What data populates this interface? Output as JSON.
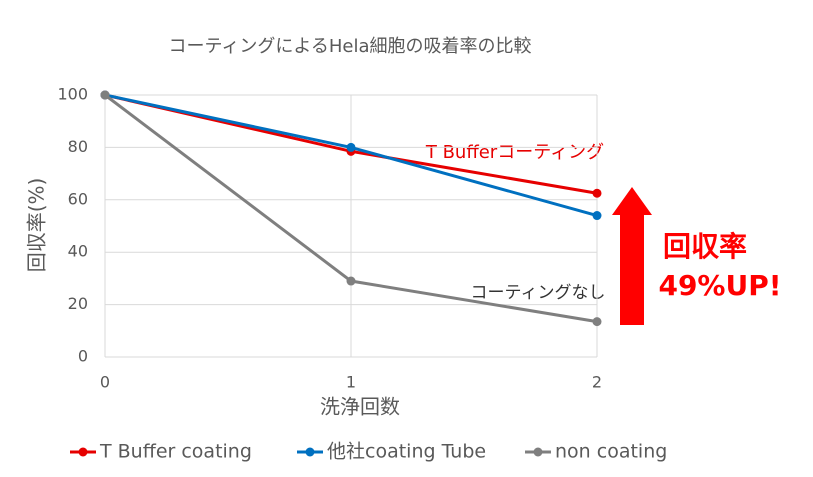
{
  "chart_data": {
    "type": "line",
    "title": "コーティングによるHela細胞の吸着率の比較",
    "x": [
      0,
      1,
      2
    ],
    "xlim": [
      0,
      2
    ],
    "xticks": [
      0,
      1,
      2
    ],
    "ylim": [
      0,
      100
    ],
    "yticks": [
      0,
      20,
      40,
      60,
      80,
      100
    ],
    "x_label": "洗浄回数",
    "y_label": "回収率(%)",
    "grid": true,
    "legend": "bottom",
    "series": [
      {
        "name": "T Buffer coating",
        "color": "#e60000",
        "values": [
          100,
          78.5,
          62.5
        ]
      },
      {
        "name": "他社coating Tube",
        "color": "#0070c0",
        "values": [
          100,
          80,
          54
        ]
      },
      {
        "name": "non coating",
        "color": "#7f7f7f",
        "values": [
          100,
          29,
          13.5
        ]
      }
    ],
    "annotations": [
      "T Bufferコーティング",
      "コーティングなし"
    ],
    "callout": [
      "回収率",
      "49%UP!"
    ]
  }
}
